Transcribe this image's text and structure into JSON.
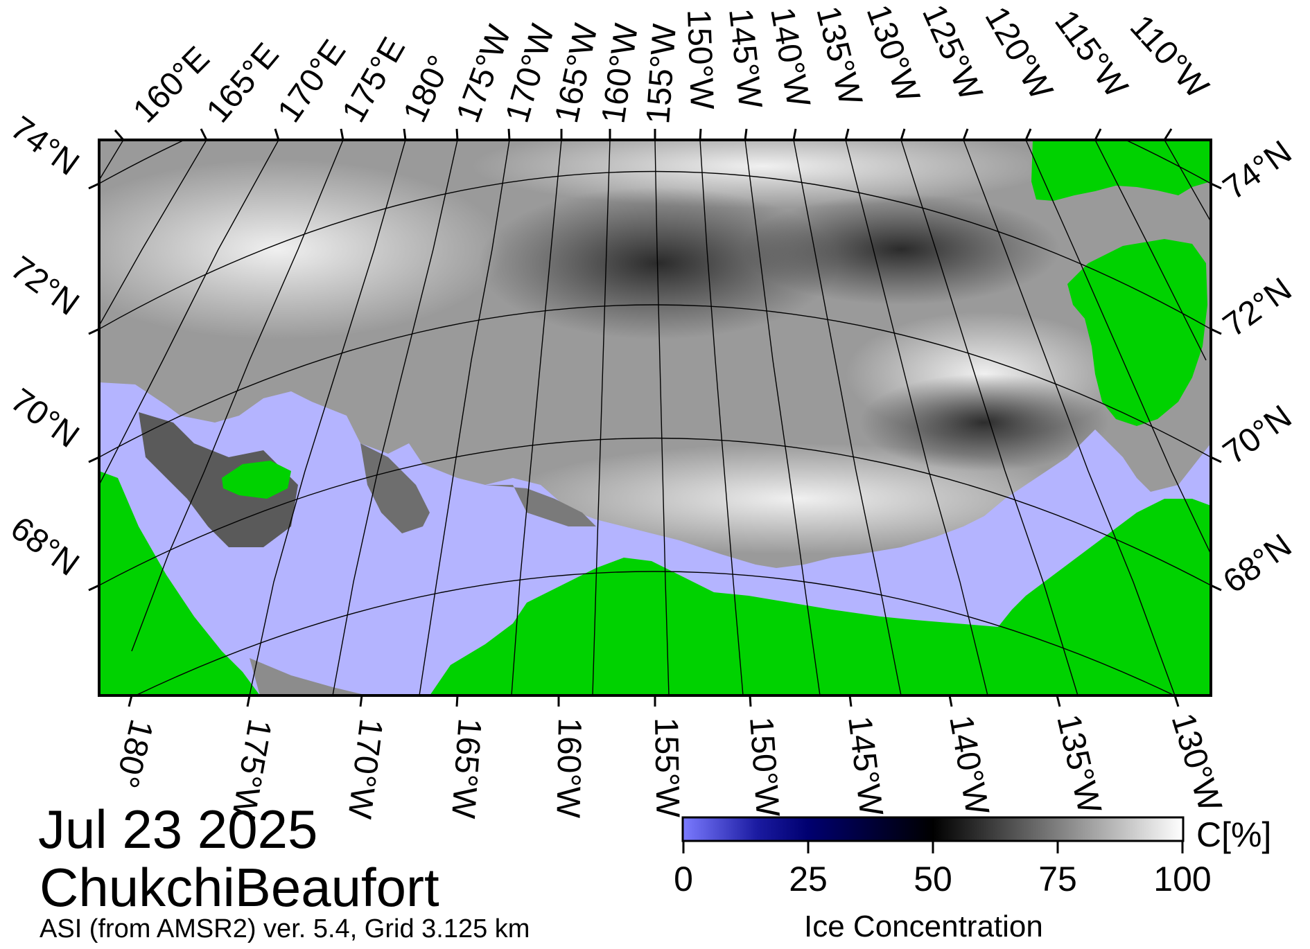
{
  "date": "Jul 23 2025",
  "region": "ChukchiBeaufort",
  "source": "ASI (from AMSR2) ver. 5.4,  Grid 3.125 km",
  "top_lon_labels": [
    "160°E",
    "165°E",
    "170°E",
    "175°E",
    "180°",
    "175°W",
    "170°W",
    "165°W",
    "160°W",
    "155°W",
    "150°W",
    "145°W",
    "140°W",
    "135°W",
    "130°W",
    "125°W",
    "120°W",
    "115°W",
    "110°W"
  ],
  "bottom_lon_labels": [
    "180°",
    "175°W",
    "170°W",
    "165°W",
    "160°W",
    "155°W",
    "150°W",
    "145°W",
    "140°W",
    "135°W",
    "130°W"
  ],
  "left_lat_labels": [
    "74°N",
    "72°N",
    "70°N",
    "68°N"
  ],
  "right_lat_labels": [
    "74°N",
    "72°N",
    "70°N",
    "68°N"
  ],
  "colorbar": {
    "title": "Ice Concentration",
    "unit": "C[%]",
    "ticks": [
      "0",
      "25",
      "50",
      "75",
      "100"
    ],
    "range": [
      0,
      100
    ],
    "stops": [
      {
        "value": 0,
        "color": "#7b7bff"
      },
      {
        "value": 15,
        "color": "#1a1aa0"
      },
      {
        "value": 25,
        "color": "#000070"
      },
      {
        "value": 50,
        "color": "#000000"
      },
      {
        "value": 100,
        "color": "#ffffff"
      }
    ]
  },
  "colors": {
    "land": "#00d200",
    "open_water": "#b4b4ff",
    "no_data": "#8c8c8c",
    "graticule": "#000000"
  }
}
